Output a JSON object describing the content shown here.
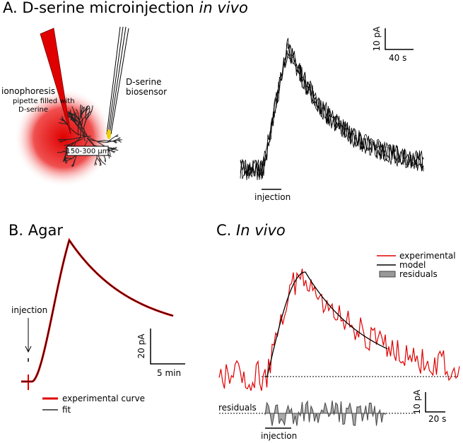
{
  "panel_a": {
    "title": "A. D-serine microinjection ",
    "title_italic": "in vivo",
    "ionophoresis": [
      "ionophoresis",
      "pipette filled with",
      "D-serine"
    ],
    "biosensor": [
      "D-serine",
      "biosensor"
    ],
    "distance": "150-300 µm",
    "scale_y": "10 pA",
    "scale_x": "40 s",
    "injection": "injection"
  },
  "panel_b": {
    "title": "B. Agar",
    "injection": "injection",
    "scale_y": "20 pA",
    "scale_x": "5 min",
    "legend": [
      "experimental curve",
      "fit"
    ]
  },
  "panel_c": {
    "title": "C. ",
    "title_italic": "In vivo",
    "legend": [
      "experimental",
      "model",
      "residuals"
    ],
    "residuals": "residuals",
    "scale_y": "10 pA",
    "scale_x": "20 s",
    "injection": "injection"
  }
}
